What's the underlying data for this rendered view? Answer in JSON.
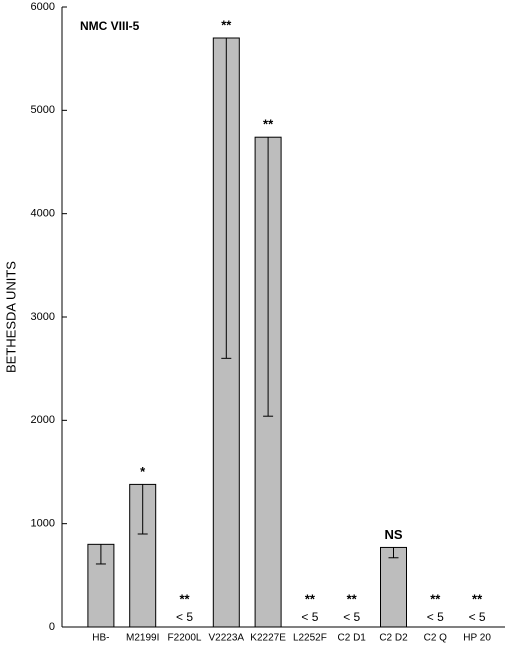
{
  "chart_data": {
    "type": "bar",
    "annotation": "NMC VIII-5",
    "y_label": "BETHESDA UNITS",
    "categories": [
      "HB-",
      "M2199I",
      "F2200L",
      "V2223A",
      "K2227E",
      "L2252F",
      "C2 D1",
      "C2 D2",
      "C2 Q",
      "HP 20"
    ],
    "values": [
      800,
      1380,
      null,
      5700,
      4740,
      null,
      null,
      770,
      null,
      null
    ],
    "errors": [
      190,
      480,
      null,
      3100,
      2700,
      null,
      null,
      100,
      null,
      null
    ],
    "value_labels": [
      null,
      null,
      "< 5",
      null,
      null,
      "< 5",
      "< 5",
      null,
      "< 5",
      "< 5"
    ],
    "significance": [
      null,
      "*",
      "**",
      "**",
      "**",
      "**",
      "**",
      "NS",
      "**",
      "**"
    ],
    "color": "#bdbdbd",
    "ylim": [
      0,
      6000
    ],
    "yticks": [
      0,
      1000,
      2000,
      3000,
      4000,
      5000,
      6000
    ],
    "grid": false
  }
}
